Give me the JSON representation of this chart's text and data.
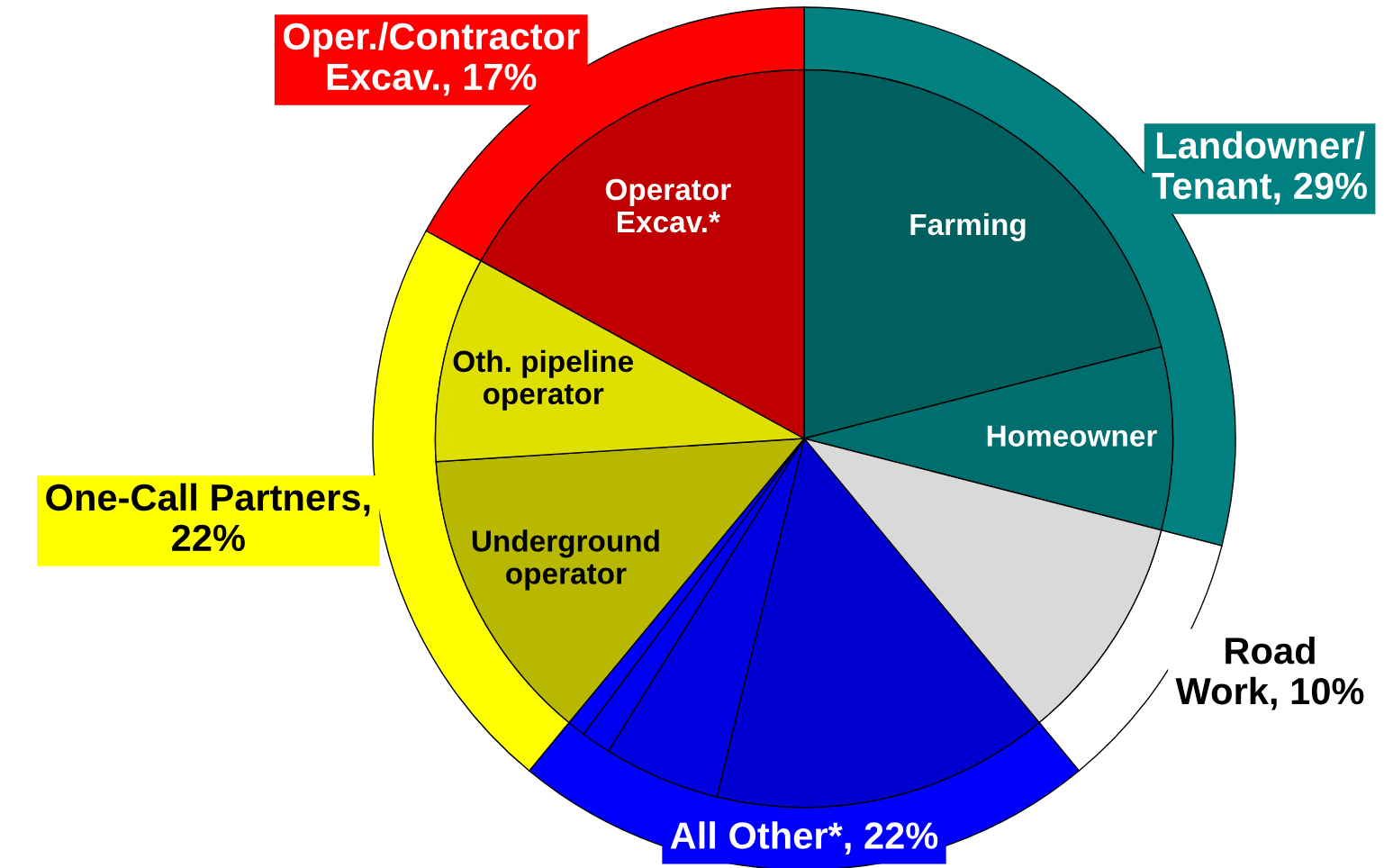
{
  "chart_data": {
    "type": "donut",
    "series": [
      {
        "values": [
          29,
          10,
          22,
          22,
          17
        ],
        "colors": [
          "#008080",
          "#ffffff",
          "#0000ff",
          "#ffff00",
          "#ff0000"
        ],
        "value_labels": [
          "Landowner/\nTenant, 29%",
          "Road\nWork, 10%",
          "All Other*, 22%",
          "One-Call Partners,\n22%",
          "Oper./Contractor\nExcav., 17%"
        ]
      },
      {
        "values": [
          21,
          8,
          10,
          14.8,
          5.1,
          1.3,
          0.8,
          13,
          9,
          17
        ],
        "colors": [
          "#005f5f",
          "#006e6e",
          "#d9d9d9",
          "#0000d0",
          "#0000e0",
          "#0000f0",
          "#0000ff",
          "#b8b800",
          "#e0e000",
          "#c00000"
        ],
        "value_labels": [
          "Farming",
          "Homeowner",
          null,
          null,
          null,
          null,
          null,
          "Underground\noperator",
          "Oth. pipeline\noperator",
          "Operator\nExcav.*"
        ]
      }
    ]
  }
}
